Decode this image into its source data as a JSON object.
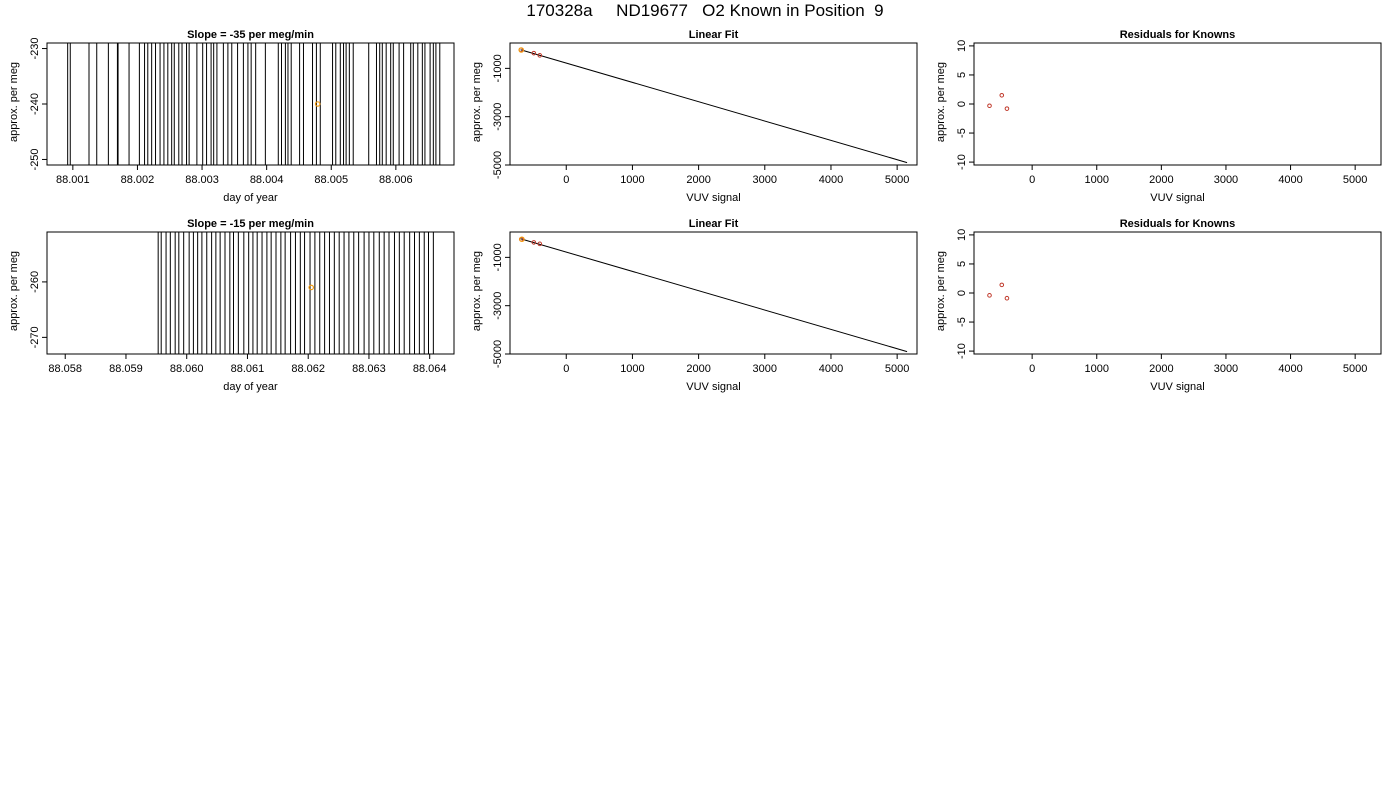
{
  "page_title": "170328a     ND19677   O2 Known in Position  9",
  "chart_data": [
    {
      "id": "r1-time",
      "type": "line",
      "title": "Slope =  -35  per meg/min",
      "xlabel": "day of year",
      "ylabel": "approx. per meg",
      "xlim": [
        88.0006,
        88.0069
      ],
      "ylim": [
        -251,
        -229
      ],
      "xticks": [
        88.001,
        88.002,
        88.003,
        88.004,
        88.005,
        88.006
      ],
      "xtick_labels": [
        "88.001",
        "88.002",
        "88.003",
        "88.004",
        "88.005",
        "88.006"
      ],
      "yticks": [
        -230,
        -240,
        -250
      ],
      "ytick_labels": [
        "-230",
        "-240",
        "-250"
      ],
      "vertical_lines_x": [
        88.00092,
        88.00096,
        88.00125,
        88.00137,
        88.00155,
        88.00169,
        88.0017,
        88.00187,
        88.00203,
        88.00211,
        88.00216,
        88.00222,
        88.00228,
        88.00235,
        88.00241,
        88.00247,
        88.00253,
        88.00257,
        88.00264,
        88.00269,
        88.00276,
        88.0028,
        88.00292,
        88.00301,
        88.00307,
        88.00314,
        88.00318,
        88.00323,
        88.00333,
        88.0034,
        88.00346,
        88.00355,
        88.00364,
        88.00371,
        88.00376,
        88.00383,
        88.00398,
        88.00418,
        88.00423,
        88.00429,
        88.00433,
        88.00438,
        88.00451,
        88.00457,
        88.00471,
        88.00477,
        88.00483,
        88.00502,
        88.00507,
        88.00514,
        88.00519,
        88.00523,
        88.00528,
        88.00534,
        88.00558,
        88.0057,
        88.00575,
        88.00579,
        88.00585,
        88.00592,
        88.00596,
        88.00605,
        88.00612,
        88.00623,
        88.00627,
        88.00634,
        88.00641,
        88.00645,
        88.00653,
        88.00658,
        88.00662,
        88.00668
      ],
      "highlight_point": {
        "x": 88.00479,
        "y": -240.0,
        "color": "#f39c12"
      }
    },
    {
      "id": "r1-fit",
      "type": "scatter",
      "title": "Linear Fit",
      "xlabel": "VUV signal",
      "ylabel": "approx. per meg",
      "xlim": [
        -850,
        5300
      ],
      "ylim": [
        -5000,
        50
      ],
      "xticks": [
        0,
        1000,
        2000,
        3000,
        4000,
        5000
      ],
      "xtick_labels": [
        "0",
        "1000",
        "2000",
        "3000",
        "4000",
        "5000"
      ],
      "yticks": [
        -1000,
        -3000,
        -5000
      ],
      "ytick_labels": [
        "-1000",
        "-3000",
        "-5000"
      ],
      "points": [
        {
          "x": -685,
          "y": -230
        },
        {
          "x": -490,
          "y": -370
        },
        {
          "x": -400,
          "y": -460
        }
      ],
      "highlight_point": {
        "x": -680,
        "y": -240,
        "color": "#f39c12"
      },
      "fit_line": {
        "x": [
          -690,
          5150
        ],
        "y": [
          -230,
          -4900
        ]
      }
    },
    {
      "id": "r1-resid",
      "type": "scatter",
      "title": "Residuals for Knowns",
      "xlabel": "VUV signal",
      "ylabel": "approx. per meg",
      "xlim": [
        -900,
        5400
      ],
      "ylim": [
        -10.5,
        10.5
      ],
      "xticks": [
        0,
        1000,
        2000,
        3000,
        4000,
        5000
      ],
      "xtick_labels": [
        "0",
        "1000",
        "2000",
        "3000",
        "4000",
        "5000"
      ],
      "yticks": [
        10,
        5,
        0,
        -5,
        -10
      ],
      "ytick_labels": [
        "10",
        "5",
        "0",
        "-5",
        "-10"
      ],
      "points": [
        {
          "x": -660,
          "y": -0.3
        },
        {
          "x": -470,
          "y": 1.5
        },
        {
          "x": -390,
          "y": -0.8
        }
      ]
    },
    {
      "id": "r2-time",
      "type": "line",
      "title": "Slope =  -15  per meg/min",
      "xlabel": "day of year",
      "ylabel": "approx. per meg",
      "xlim": [
        88.0577,
        88.0644
      ],
      "ylim": [
        -273,
        -251
      ],
      "xticks": [
        88.058,
        88.059,
        88.06,
        88.061,
        88.062,
        88.063,
        88.064
      ],
      "xtick_labels": [
        "88.058",
        "88.059",
        "88.060",
        "88.061",
        "88.062",
        "88.063",
        "88.064"
      ],
      "yticks": [
        -260,
        -270
      ],
      "ytick_labels": [
        "-260",
        "-270"
      ],
      "vertical_lines_x": [
        88.05953,
        88.05958,
        88.05966,
        88.05973,
        88.05981,
        88.05987,
        88.05995,
        88.06004,
        88.06011,
        88.06018,
        88.06025,
        88.06033,
        88.06041,
        88.06048,
        88.06055,
        88.06063,
        88.06071,
        88.06077,
        88.06085,
        88.06094,
        88.06102,
        88.06109,
        88.06116,
        88.06124,
        88.06132,
        88.06139,
        88.06147,
        88.06155,
        88.06162,
        88.06171,
        88.06179,
        88.06187,
        88.06194,
        88.06203,
        88.06211,
        88.06219,
        88.06227,
        88.06235,
        88.06243,
        88.06251,
        88.06259,
        88.06267,
        88.06275,
        88.06283,
        88.06292,
        88.063,
        88.06308,
        88.06317,
        88.06325,
        88.06333,
        88.06342,
        88.0635,
        88.06358,
        88.06367,
        88.06375,
        88.06383,
        88.06391,
        88.06398,
        88.06406
      ],
      "highlight_point": {
        "x": 88.06205,
        "y": -261.0,
        "color": "#f39c12"
      }
    },
    {
      "id": "r2-fit",
      "type": "scatter",
      "title": "Linear Fit",
      "xlabel": "VUV signal",
      "ylabel": "approx. per meg",
      "xlim": [
        -850,
        5300
      ],
      "ylim": [
        -5000,
        50
      ],
      "xticks": [
        0,
        1000,
        2000,
        3000,
        4000,
        5000
      ],
      "xtick_labels": [
        "0",
        "1000",
        "2000",
        "3000",
        "4000",
        "5000"
      ],
      "yticks": [
        -1000,
        -3000,
        -5000
      ],
      "ytick_labels": [
        "-1000",
        "-3000",
        "-5000"
      ],
      "points": [
        {
          "x": -680,
          "y": -250
        },
        {
          "x": -490,
          "y": -380
        },
        {
          "x": -400,
          "y": -440
        }
      ],
      "highlight_point": {
        "x": -670,
        "y": -250,
        "color": "#f39c12"
      },
      "fit_line": {
        "x": [
          -690,
          5150
        ],
        "y": [
          -230,
          -4900
        ]
      }
    },
    {
      "id": "r2-resid",
      "type": "scatter",
      "title": "Residuals for Knowns",
      "xlabel": "VUV signal",
      "ylabel": "approx. per meg",
      "xlim": [
        -900,
        5400
      ],
      "ylim": [
        -10.5,
        10.5
      ],
      "xticks": [
        0,
        1000,
        2000,
        3000,
        4000,
        5000
      ],
      "xtick_labels": [
        "0",
        "1000",
        "2000",
        "3000",
        "4000",
        "5000"
      ],
      "yticks": [
        10,
        5,
        0,
        -5,
        -10
      ],
      "ytick_labels": [
        "10",
        "5",
        "0",
        "-5",
        "-10"
      ],
      "points": [
        {
          "x": -660,
          "y": -0.4
        },
        {
          "x": -470,
          "y": 1.4
        },
        {
          "x": -390,
          "y": -0.9
        }
      ]
    }
  ]
}
